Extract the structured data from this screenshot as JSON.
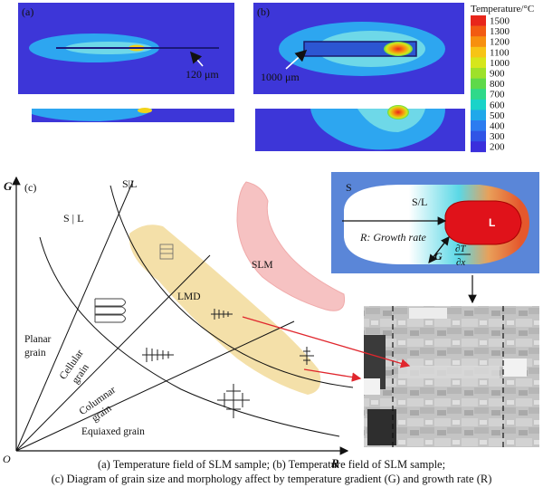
{
  "panel_a": {
    "tag": "(a)",
    "annotation": "120 μm"
  },
  "panel_b": {
    "tag": "(b)",
    "annotation": "1000 μm"
  },
  "colorbar": {
    "title": "Temperature/°C",
    "ticks": [
      "1500",
      "1300",
      "1200",
      "1100",
      "1000",
      "900",
      "800",
      "700",
      "600",
      "500",
      "400",
      "300",
      "200"
    ],
    "colors": [
      "#e8261b",
      "#f25b12",
      "#f7900f",
      "#f7c416",
      "#d6e61b",
      "#9ee12a",
      "#5ed94a",
      "#2fd98a",
      "#19d3c9",
      "#20a8ea",
      "#2c7cf0",
      "#3054e6",
      "#3a2fdc"
    ]
  },
  "panel_c": {
    "tag": "(c)",
    "axis_y": "G",
    "axis_x": "R",
    "origin": "O",
    "top_label": "S|L",
    "left_label": "S | L",
    "region_planar": "Planar\ngrain",
    "region_cellular": "Cellular\ngrain",
    "region_columnar": "Columnar\ngrain",
    "region_equiaxed": "Equiaxed grain",
    "band_lmd": "LMD",
    "band_slm": "SLM"
  },
  "pool_diagram": {
    "solid": "S",
    "mushy": "S/L",
    "liquid": "L",
    "growth_rate": "R: Growth rate",
    "gradient": "G",
    "derivative_num": "∂T",
    "derivative_den": "∂x"
  },
  "caption": {
    "line1": "(a)  Temperature  field  of  SLM  sample; (b) Temperature field of SLM sample;",
    "line2": "(c) Diagram of grain size and morphology affect by temperature gradient (G) and growth rate (R)"
  }
}
